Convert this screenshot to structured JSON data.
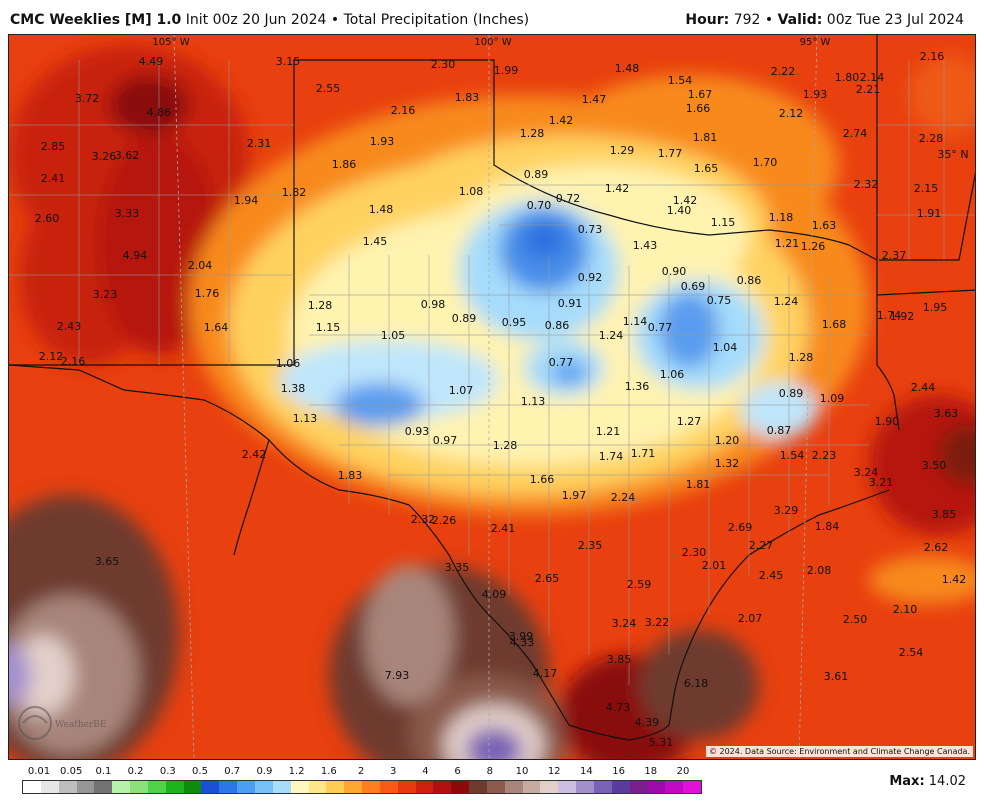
{
  "header": {
    "model": "CMC Weeklies [M] 1.0",
    "init_label": "Init",
    "init": "00z 20 Jun 2024",
    "product": "Total Precipitation (Inches)",
    "hour_label": "Hour:",
    "hour": "792",
    "valid_label": "Valid:",
    "valid": "00z Tue 23 Jul 2024",
    "separator": "•"
  },
  "map": {
    "longitude_labels": [
      "105° W",
      "100° W",
      "95° W"
    ],
    "latitude_labels": [
      "35° N"
    ],
    "copyright": "© 2024. Data Source: Environment and Climate Change Canada.",
    "logo_text": "WeatherBELL",
    "values": [
      "4.49",
      "3.15",
      "2.30",
      "1.99",
      "1.48",
      "1.54",
      "2.22",
      "1.80",
      "2.14",
      "2.16",
      "3.72",
      "2.55",
      "1.83",
      "1.67",
      "1.93",
      "2.21",
      "4.86",
      "2.16",
      "1.47",
      "1.66",
      "1.42",
      "2.12",
      "1.28",
      "1.81",
      "2.74",
      "2.28",
      "2.85",
      "2.31",
      "1.93",
      "1.29",
      "1.77",
      "35° N",
      "3.26",
      "3.62",
      "1.86",
      "1.65",
      "1.70",
      "2.41",
      "0.89",
      "1.42",
      "2.32",
      "2.15",
      "1.08",
      "1.82",
      "0.72",
      "1.42",
      "1.94",
      "1.48",
      "0.70",
      "1.40",
      "1.91",
      "3.33",
      "1.15",
      "1.18",
      "1.63",
      "2.60",
      "0.73",
      "1.45",
      "1.43",
      "1.21",
      "1.26",
      "4.94",
      "2.37",
      "2.04",
      "0.90",
      "0.86",
      "3.23",
      "1.76",
      "0.92",
      "0.69",
      "0.98",
      "1.28",
      "0.91",
      "0.75",
      "1.24",
      "1.95",
      "1.64",
      "0.89",
      "1.15",
      "0.95",
      "0.86",
      "0.77",
      "1.68",
      "1.74",
      "1.92",
      "2.43",
      "1.05",
      "1.24",
      "1.14",
      "1.04",
      "2.12",
      "2.16",
      "1.06",
      "0.77",
      "1.28",
      "1.06",
      "1.38",
      "1.07",
      "1.36",
      "2.44",
      "0.89",
      "1.13",
      "1.09",
      "0.93",
      "3.63",
      "1.13",
      "1.27",
      "1.90",
      "0.97",
      "1.28",
      "1.21",
      "0.87",
      "1.20",
      "2.42",
      "1.74",
      "1.71",
      "1.54",
      "2.23",
      "1.32",
      "3.24",
      "3.50",
      "1.83",
      "1.66",
      "1.81",
      "3.21",
      "1.97",
      "2.24",
      "2.32",
      "2.26",
      "2.41",
      "3.29",
      "3.85",
      "2.69",
      "1.84",
      "3.65",
      "2.35",
      "2.27",
      "2.62",
      "3.35",
      "2.30",
      "2.01",
      "2.65",
      "2.45",
      "2.08",
      "1.42",
      "2.59",
      "4.09",
      "2.10",
      "2.07",
      "3.24",
      "3.22",
      "2.50",
      "3.99",
      "4.33",
      "2.54",
      "3.85",
      "4.17",
      "7.93",
      "6.18",
      "3.61",
      "4.73",
      "4.39",
      "5.31"
    ]
  },
  "legend": {
    "ticks": [
      "0.01",
      "0.05",
      "0.1",
      "0.2",
      "0.3",
      "0.5",
      "0.7",
      "0.9",
      "1.2",
      "1.6",
      "2",
      "3",
      "4",
      "6",
      "8",
      "10",
      "12",
      "14",
      "16",
      "18",
      "20"
    ],
    "colors": [
      "#ffffff",
      "#e6e6e6",
      "#bdbdbd",
      "#969696",
      "#737373",
      "#b6f2a8",
      "#8be27a",
      "#4fd14a",
      "#1db31d",
      "#0f8c0f",
      "#1b4fd6",
      "#2a78e8",
      "#4b9ef2",
      "#78c0f7",
      "#a8dcfb",
      "#fff7c0",
      "#ffe68a",
      "#ffcc55",
      "#ffa633",
      "#ff7e1f",
      "#fb5a14",
      "#e83a10",
      "#cf200f",
      "#b0100e",
      "#8c0a0a",
      "#6e3a2e",
      "#8a5a4c",
      "#a8857a",
      "#c7aaa2",
      "#e3cfca",
      "#cdbde0",
      "#a38fcc",
      "#7a62b5",
      "#5b3c9c",
      "#7a1f8c",
      "#9c0ba8",
      "#c20ac4",
      "#e011d9"
    ],
    "max_label": "Max:",
    "max_value": "14.02"
  }
}
